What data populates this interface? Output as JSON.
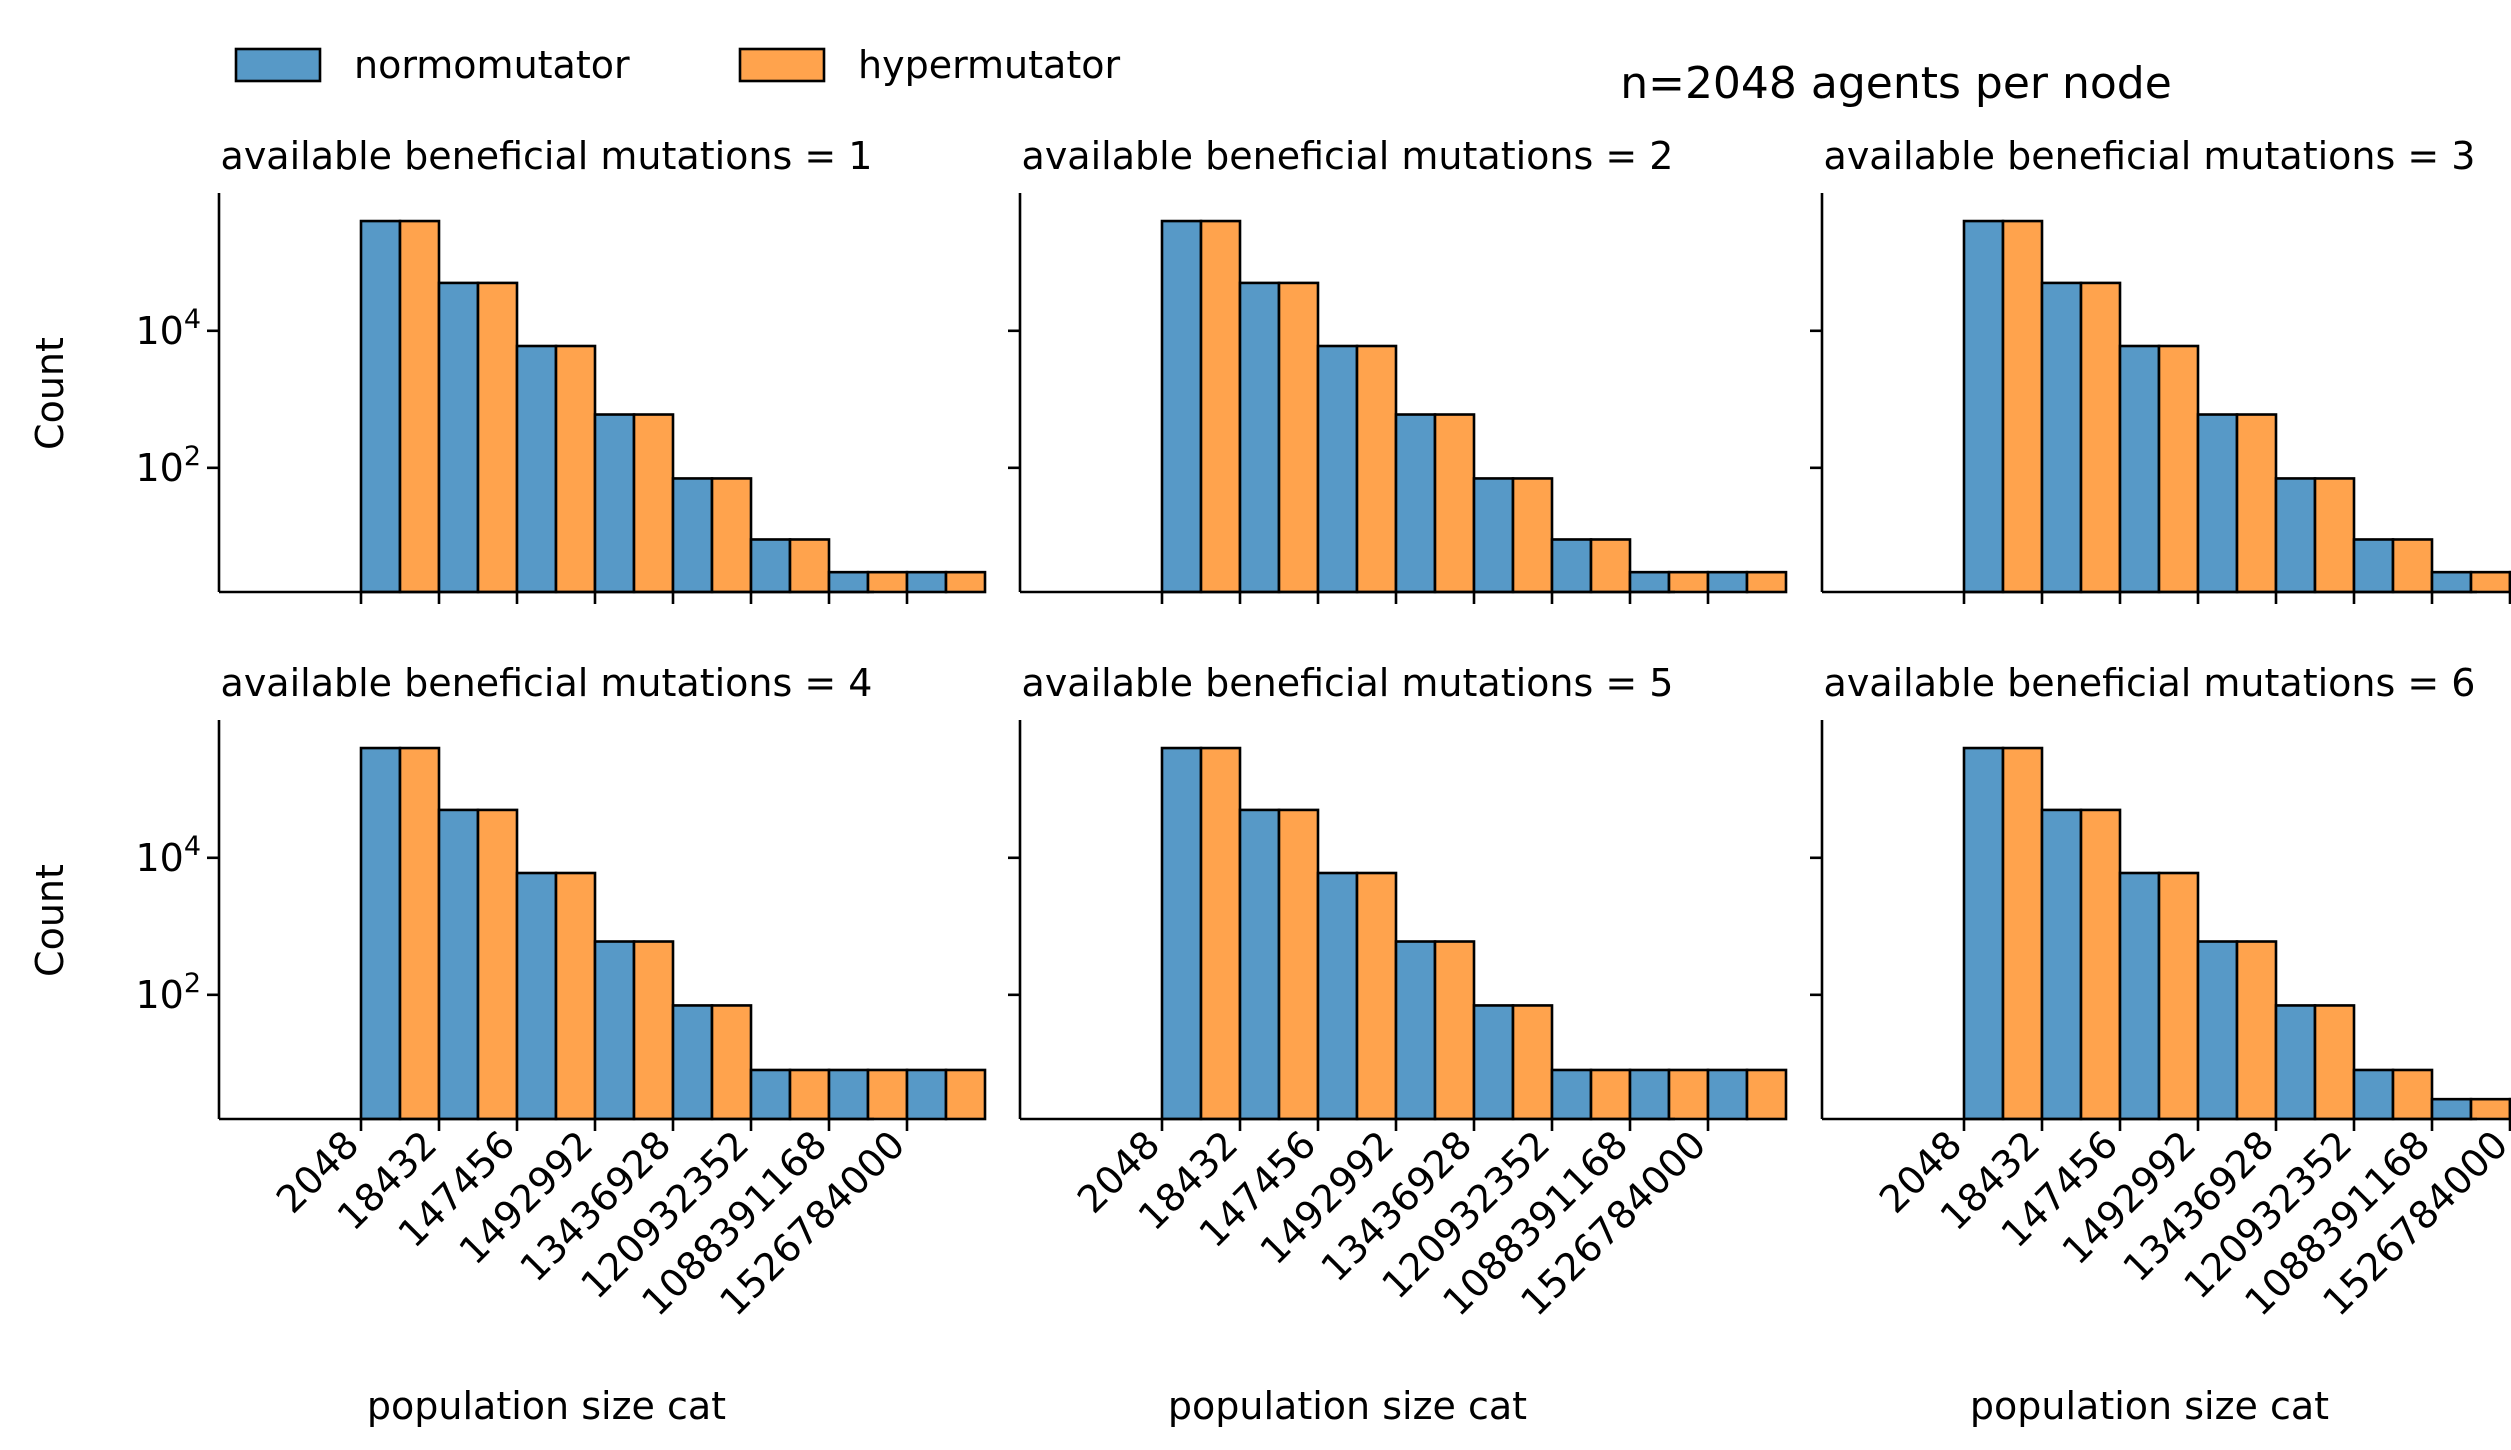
{
  "figure": {
    "suptitle": "n=2048 agents per node"
  },
  "legend": {
    "entries": [
      {
        "name": "normomutator",
        "color": "#5799c7"
      },
      {
        "name": "hypermutator",
        "color": "#ffa34d"
      }
    ]
  },
  "chart_data": {
    "type": "bar",
    "yscale": "log",
    "ylabel": "Count",
    "xlabel": "population size cat",
    "ytick_labels": [
      {
        "value": 100,
        "label": "10^2"
      },
      {
        "value": 10000,
        "label": "10^4"
      }
    ],
    "categories": [
      "2048",
      "18432",
      "147456",
      "1492992",
      "13436928",
      "120932352",
      "1088391168",
      "1526784000"
    ],
    "panels": [
      {
        "title": "available beneficial mutations = 1",
        "series": [
          {
            "name": "normomutator",
            "values": [
              400000,
              50000,
              6000,
              600,
              70,
              9,
              3,
              3
            ]
          },
          {
            "name": "hypermutator",
            "values": [
              400000,
              50000,
              6000,
              600,
              70,
              9,
              3,
              3
            ]
          }
        ]
      },
      {
        "title": "available beneficial mutations = 2",
        "series": [
          {
            "name": "normomutator",
            "values": [
              400000,
              50000,
              6000,
              600,
              70,
              9,
              3,
              3
            ]
          },
          {
            "name": "hypermutator",
            "values": [
              400000,
              50000,
              6000,
              600,
              70,
              9,
              3,
              3
            ]
          }
        ]
      },
      {
        "title": "available beneficial mutations = 3",
        "series": [
          {
            "name": "normomutator",
            "values": [
              400000,
              50000,
              6000,
              600,
              70,
              9,
              3,
              3
            ]
          },
          {
            "name": "hypermutator",
            "values": [
              400000,
              50000,
              6000,
              600,
              70,
              9,
              3,
              3
            ]
          }
        ]
      },
      {
        "title": "available beneficial mutations = 4",
        "series": [
          {
            "name": "normomutator",
            "values": [
              400000,
              50000,
              6000,
              600,
              70,
              8,
              8,
              8
            ]
          },
          {
            "name": "hypermutator",
            "values": [
              400000,
              50000,
              6000,
              600,
              70,
              8,
              8,
              8
            ]
          }
        ]
      },
      {
        "title": "available beneficial mutations = 5",
        "series": [
          {
            "name": "normomutator",
            "values": [
              400000,
              50000,
              6000,
              600,
              70,
              8,
              8,
              8
            ]
          },
          {
            "name": "hypermutator",
            "values": [
              400000,
              50000,
              6000,
              600,
              70,
              8,
              8,
              8
            ]
          }
        ]
      },
      {
        "title": "available beneficial mutations = 6",
        "series": [
          {
            "name": "normomutator",
            "values": [
              400000,
              50000,
              6000,
              600,
              70,
              8,
              3,
              3
            ]
          },
          {
            "name": "hypermutator",
            "values": [
              400000,
              50000,
              6000,
              600,
              70,
              8,
              3,
              3
            ]
          }
        ]
      }
    ]
  }
}
